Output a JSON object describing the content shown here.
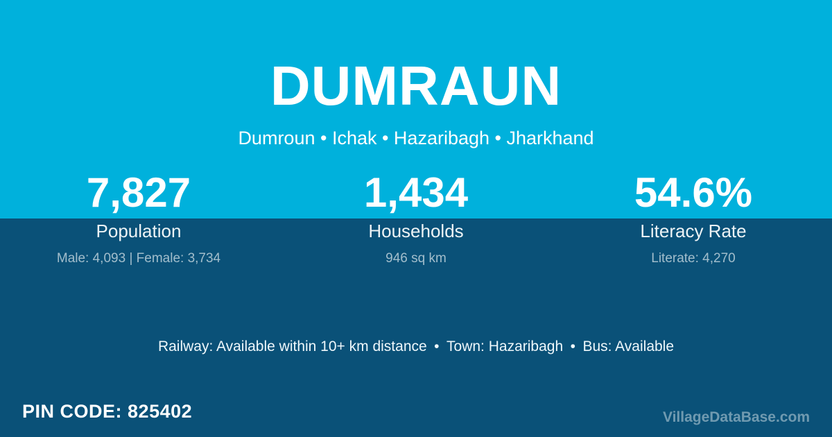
{
  "colors": {
    "background_cyan": "#00b1dc",
    "background_dark_blue": "#0a5178",
    "text_primary": "#ffffff",
    "text_muted": "#abc4d3",
    "watermark_gray": "#6f8e9f"
  },
  "header": {
    "title": "DUMRAUN",
    "subtitle": "Dumroun • Ichak • Hazaribagh • Jharkhand"
  },
  "stats": [
    {
      "value": "7,827",
      "label": "Population",
      "detail": "Male: 4,093 | Female: 3,734"
    },
    {
      "value": "1,434",
      "label": "Households",
      "detail": "946 sq km"
    },
    {
      "value": "54.6%",
      "label": "Literacy Rate",
      "detail": "Literate: 4,270"
    }
  ],
  "transport": {
    "line": "Railway: Available within 10+ km distance • Town: Hazaribagh • Bus: Available"
  },
  "footer": {
    "pin_prefix": "PIN CODE:",
    "pin_code": "825402",
    "watermark": "VillageDataBase.com"
  }
}
